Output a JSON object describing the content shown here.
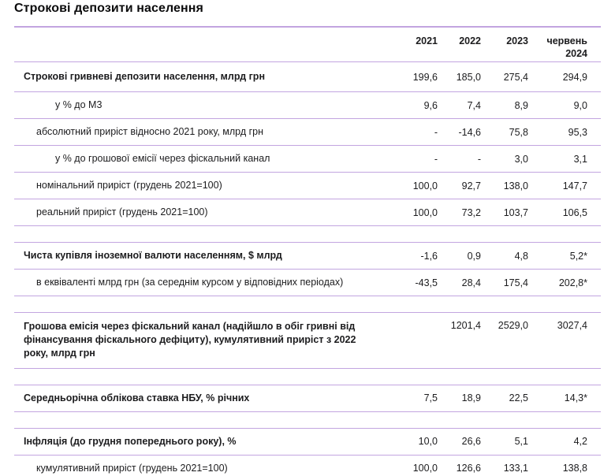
{
  "title": "Строкові депозити населення",
  "colors": {
    "divider_line": "#c2a5e0",
    "text": "#1c1c1e"
  },
  "table": {
    "columns": [
      "2021",
      "2022",
      "2023",
      "червень 2024"
    ],
    "rows": [
      {
        "label": "Строкові гривневі депозити населення, млрд грн",
        "bold": true,
        "indent": 0,
        "first": true,
        "values": [
          "199,6",
          "185,0",
          "275,4",
          "294,9"
        ]
      },
      {
        "label": "у % до М3",
        "bold": false,
        "indent": 2,
        "values": [
          "9,6",
          "7,4",
          "8,9",
          "9,0"
        ]
      },
      {
        "label": "абсолютний приріст відносно 2021 року, млрд грн",
        "bold": false,
        "indent": 1,
        "values": [
          "-",
          "-14,6",
          "75,8",
          "95,3"
        ]
      },
      {
        "label": "у % до грошової емісії через фіскальний канал",
        "bold": false,
        "indent": 2,
        "values": [
          "-",
          "-",
          "3,0",
          "3,1"
        ]
      },
      {
        "label": "номінальний приріст (грудень 2021=100)",
        "bold": false,
        "indent": 1,
        "values": [
          "100,0",
          "92,7",
          "138,0",
          "147,7"
        ]
      },
      {
        "label": "реальний приріст (грудень 2021=100)",
        "bold": false,
        "indent": 1,
        "values": [
          "100,0",
          "73,2",
          "103,7",
          "106,5"
        ]
      },
      {
        "spacer": true
      },
      {
        "label": "Чиста купівля іноземної валюти населенням, $ млрд",
        "bold": true,
        "indent": 0,
        "values": [
          "-1,6",
          "0,9",
          "4,8",
          "5,2*"
        ]
      },
      {
        "label": "в еквіваленті млрд грн (за середнім курсом у відповідних періодах)",
        "bold": false,
        "indent": 1,
        "values": [
          "-43,5",
          "28,4",
          "175,4",
          "202,8*"
        ]
      },
      {
        "spacer": true
      },
      {
        "label": "Грошова емісія через фіскальний канал (надійшло в обіг гривні від фінансування фіскального дефіциту), кумулятивний приріст з 2022 року, млрд грн",
        "bold": true,
        "indent": 0,
        "multiline": true,
        "values": [
          "",
          "1201,4",
          "2529,0",
          "3027,4"
        ]
      },
      {
        "spacer": true
      },
      {
        "label": "Середньорічна облікова ставка НБУ, % річних",
        "bold": true,
        "indent": 0,
        "values": [
          "7,5",
          "18,9",
          "22,5",
          "14,3*"
        ]
      },
      {
        "spacer": true
      },
      {
        "label": "Інфляція (до грудня попереднього року), %",
        "bold": true,
        "indent": 0,
        "values": [
          "10,0",
          "26,6",
          "5,1",
          "4,2"
        ]
      },
      {
        "label": "кумулятивний приріст (грудень 2021=100)",
        "bold": false,
        "indent": 1,
        "values": [
          "100,0",
          "126,6",
          "133,1",
          "138,8"
        ]
      }
    ]
  },
  "chart_data": {
    "type": "table",
    "title": "Строкові депозити населення",
    "columns": [
      "2021",
      "2022",
      "2023",
      "червень 2024"
    ],
    "rows": [
      {
        "label": "Строкові гривневі депозити населення, млрд грн",
        "values": [
          199.6,
          185.0,
          275.4,
          294.9
        ]
      },
      {
        "label": "у % до М3",
        "values": [
          9.6,
          7.4,
          8.9,
          9.0
        ]
      },
      {
        "label": "абсолютний приріст відносно 2021 року, млрд грн",
        "values": [
          null,
          -14.6,
          75.8,
          95.3
        ]
      },
      {
        "label": "у % до грошової емісії через фіскальний канал",
        "values": [
          null,
          null,
          3.0,
          3.1
        ]
      },
      {
        "label": "номінальний приріст (грудень 2021=100)",
        "values": [
          100.0,
          92.7,
          138.0,
          147.7
        ]
      },
      {
        "label": "реальний приріст (грудень 2021=100)",
        "values": [
          100.0,
          73.2,
          103.7,
          106.5
        ]
      },
      {
        "label": "Чиста купівля іноземної валюти населенням, $ млрд",
        "values": [
          -1.6,
          0.9,
          4.8,
          5.2
        ],
        "asterisk_on_last": true
      },
      {
        "label": "в еквіваленті млрд грн (за середнім курсом у відповідних періодах)",
        "values": [
          -43.5,
          28.4,
          175.4,
          202.8
        ],
        "asterisk_on_last": true
      },
      {
        "label": "Грошова емісія через фіскальний канал (надійшло в обіг гривні від фінансування фіскального дефіциту), кумулятивний приріст з 2022 року, млрд грн",
        "values": [
          null,
          1201.4,
          2529.0,
          3027.4
        ]
      },
      {
        "label": "Середньорічна облікова ставка НБУ, % річних",
        "values": [
          7.5,
          18.9,
          22.5,
          14.3
        ],
        "asterisk_on_last": true
      },
      {
        "label": "Інфляція (до грудня попереднього року), %",
        "values": [
          10.0,
          26.6,
          5.1,
          4.2
        ]
      },
      {
        "label": "кумулятивний приріст (грудень 2021=100)",
        "values": [
          100.0,
          126.6,
          133.1,
          138.8
        ]
      }
    ]
  }
}
